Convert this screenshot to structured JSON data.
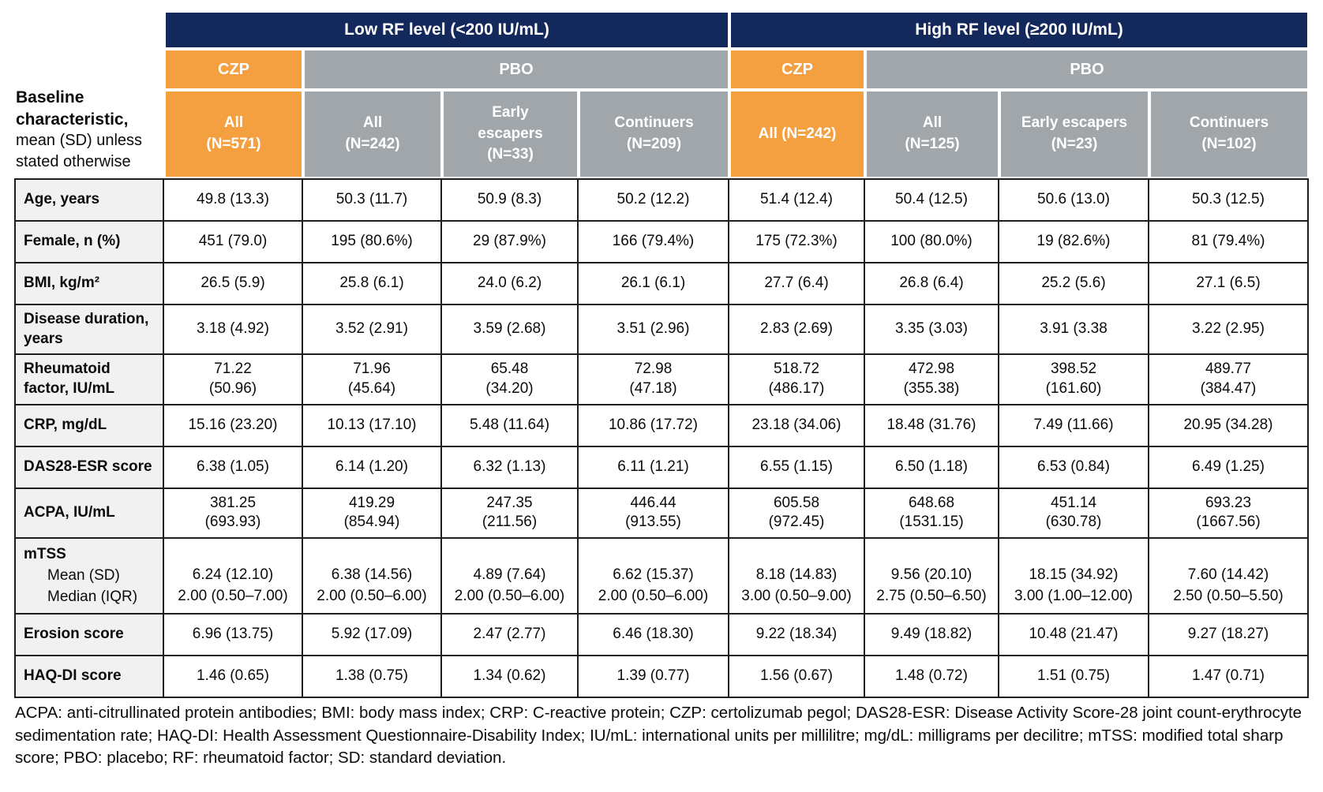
{
  "colors": {
    "navy": "#13295C",
    "orange": "#F5A040",
    "gray": "#A1A6AA",
    "label-bg": "#F1F1F1"
  },
  "table": {
    "corner": {
      "bold": "Baseline characteristic,",
      "rest": "mean (SD) unless stated otherwise"
    },
    "groups": [
      {
        "label": "Low RF level (<200 IU/mL)"
      },
      {
        "label": "High RF level (≥200 IU/mL)"
      }
    ],
    "treatments": [
      {
        "label": "CZP"
      },
      {
        "label": "PBO"
      },
      {
        "label": "CZP"
      },
      {
        "label": "PBO"
      }
    ],
    "columns": [
      {
        "label": "All\n(N=571)"
      },
      {
        "label": "All\n(N=242)"
      },
      {
        "label": "Early\nescapers\n(N=33)"
      },
      {
        "label": "Continuers\n(N=209)"
      },
      {
        "label": "All (N=242)"
      },
      {
        "label": "All\n(N=125)"
      },
      {
        "label": "Early escapers\n(N=23)"
      },
      {
        "label": "Continuers\n(N=102)"
      }
    ],
    "rows": [
      {
        "label": "Age, years",
        "values": [
          "49.8 (13.3)",
          "50.3 (11.7)",
          "50.9 (8.3)",
          "50.2 (12.2)",
          "51.4 (12.4)",
          "50.4 (12.5)",
          "50.6 (13.0)",
          "50.3 (12.5)"
        ]
      },
      {
        "label": "Female, n (%)",
        "values": [
          "451 (79.0)",
          "195 (80.6%)",
          "29 (87.9%)",
          "166 (79.4%)",
          "175 (72.3%)",
          "100 (80.0%)",
          "19 (82.6%)",
          "81 (79.4%)"
        ]
      },
      {
        "label": "BMI, kg/m²",
        "values": [
          "26.5 (5.9)",
          "25.8 (6.1)",
          "24.0 (6.2)",
          "26.1 (6.1)",
          "27.7 (6.4)",
          "26.8 (6.4)",
          "25.2 (5.6)",
          "27.1 (6.5)"
        ]
      },
      {
        "label": "Disease duration, years",
        "values": [
          "3.18 (4.92)",
          "3.52 (2.91)",
          "3.59 (2.68)",
          "3.51 (2.96)",
          "2.83 (2.69)",
          "3.35 (3.03)",
          "3.91 (3.38",
          "3.22 (2.95)"
        ]
      },
      {
        "label": "Rheumatoid factor, IU/mL",
        "values": [
          "71.22\n(50.96)",
          "71.96\n(45.64)",
          "65.48\n(34.20)",
          "72.98\n(47.18)",
          "518.72\n(486.17)",
          "472.98\n(355.38)",
          "398.52\n(161.60)",
          "489.77\n(384.47)"
        ]
      },
      {
        "label": "CRP, mg/dL",
        "values": [
          "15.16 (23.20)",
          "10.13 (17.10)",
          "5.48 (11.64)",
          "10.86 (17.72)",
          "23.18 (34.06)",
          "18.48 (31.76)",
          "7.49 (11.66)",
          "20.95 (34.28)"
        ]
      },
      {
        "label": "DAS28-ESR score",
        "values": [
          "6.38 (1.05)",
          "6.14 (1.20)",
          "6.32 (1.13)",
          "6.11 (1.21)",
          "6.55 (1.15)",
          "6.50 (1.18)",
          "6.53 (0.84)",
          "6.49 (1.25)"
        ]
      },
      {
        "label": "ACPA, IU/mL",
        "values": [
          "381.25\n(693.93)",
          "419.29\n(854.94)",
          "247.35\n(211.56)",
          "446.44\n(913.55)",
          "605.58\n(972.45)",
          "648.68\n(1531.15)",
          "451.14\n(630.78)",
          "693.23\n(1667.56)"
        ]
      },
      {
        "label": "mTSS",
        "sublabels": [
          "Mean (SD)",
          "Median (IQR)"
        ],
        "values": [
          "6.24 (12.10)\n2.00 (0.50–7.00)",
          "6.38 (14.56)\n2.00 (0.50–6.00)",
          "4.89 (7.64)\n2.00 (0.50–6.00)",
          "6.62 (15.37)\n2.00 (0.50–6.00)",
          "8.18 (14.83)\n3.00 (0.50–9.00)",
          "9.56 (20.10)\n2.75 (0.50–6.50)",
          "18.15 (34.92)\n3.00 (1.00–12.00)",
          "7.60 (14.42)\n2.50 (0.50–5.50)"
        ]
      },
      {
        "label": "Erosion score",
        "values": [
          "6.96 (13.75)",
          "5.92 (17.09)",
          "2.47 (2.77)",
          "6.46 (18.30)",
          "9.22 (18.34)",
          "9.49 (18.82)",
          "10.48 (21.47)",
          "9.27 (18.27)"
        ]
      },
      {
        "label": "HAQ-DI score",
        "values": [
          "1.46 (0.65)",
          "1.38 (0.75)",
          "1.34 (0.62)",
          "1.39 (0.77)",
          "1.56 (0.67)",
          "1.48 (0.72)",
          "1.51 (0.75)",
          "1.47 (0.71)"
        ]
      }
    ],
    "footnote": "ACPA: anti-citrullinated protein antibodies; BMI: body mass index; CRP: C-reactive protein; CZP: certolizumab pegol; DAS28-ESR: Disease Activity Score-28 joint count-erythrocyte sedimentation rate; HAQ-DI: Health Assessment Questionnaire-Disability Index; IU/mL: international units per millilitre; mg/dL: milligrams per decilitre; mTSS: modified total sharp score; PBO: placebo; RF: rheumatoid factor; SD: standard deviation."
  }
}
